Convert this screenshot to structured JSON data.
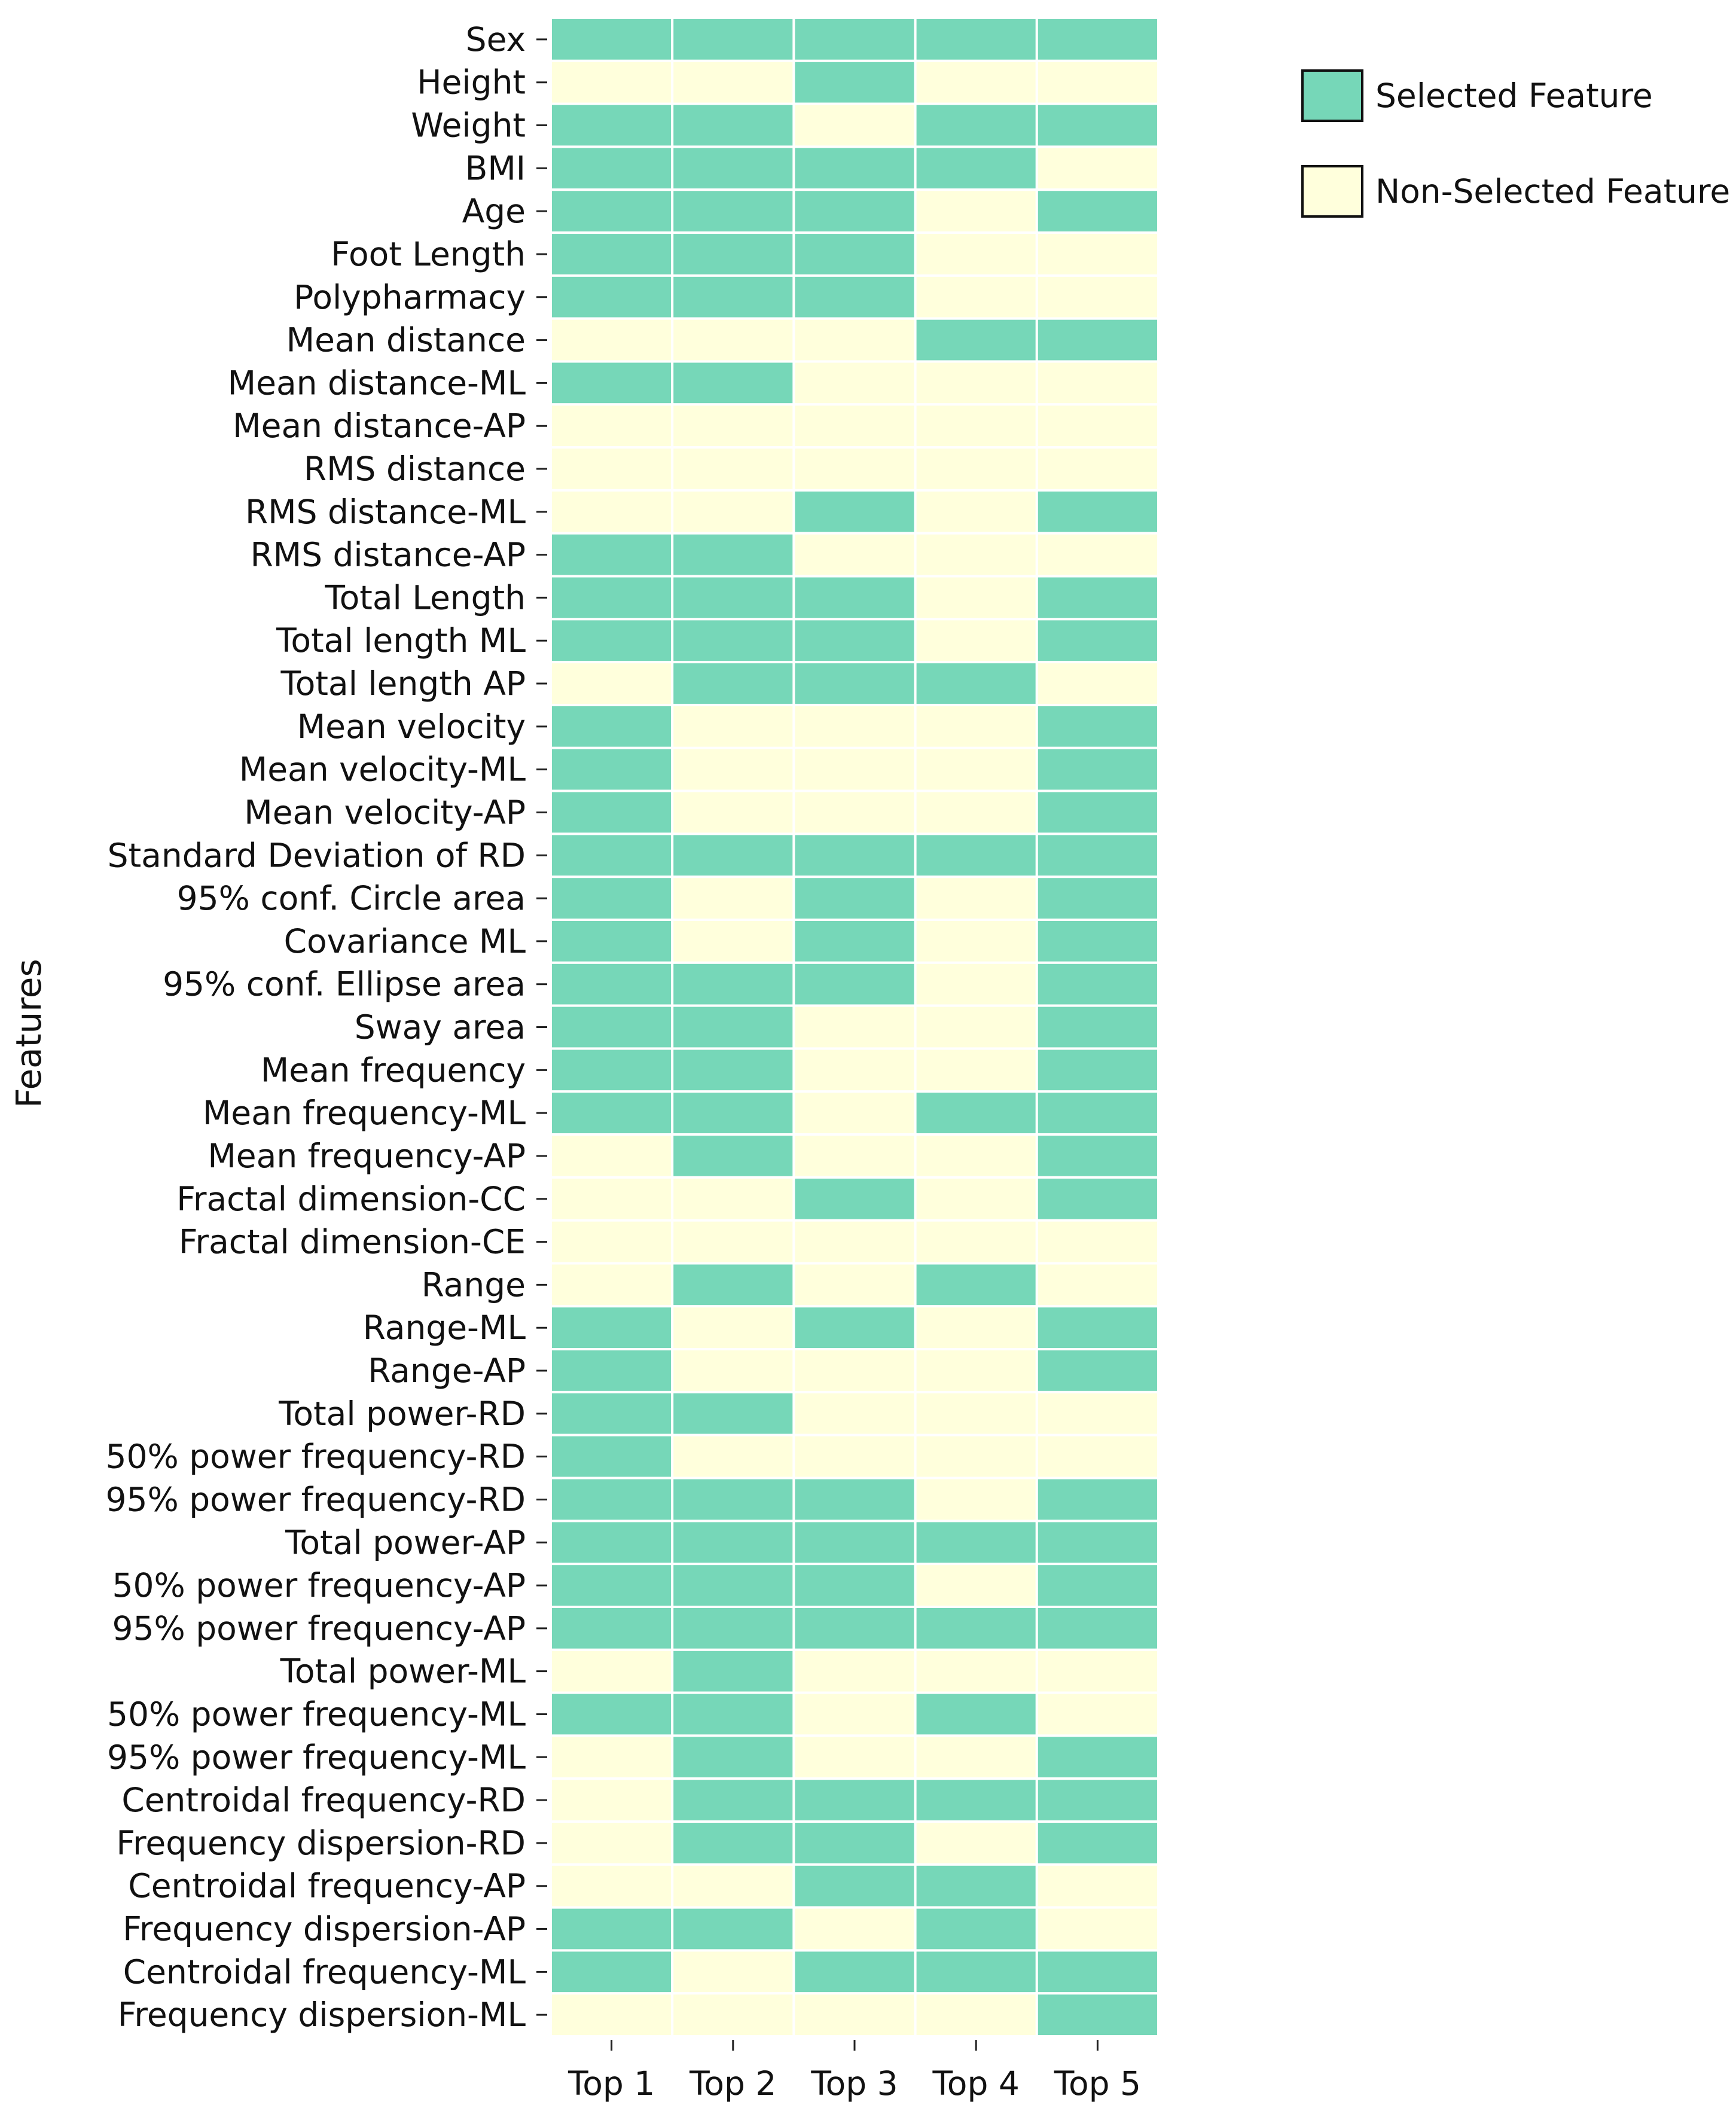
{
  "chart_data": {
    "type": "heatmap",
    "ylabel": "Features",
    "xlabel": "",
    "columns": [
      "Top 1",
      "Top 2",
      "Top 3",
      "Top 4",
      "Top 5"
    ],
    "rows": [
      "Sex",
      "Height",
      "Weight",
      "BMI",
      "Age",
      "Foot Length",
      "Polypharmacy",
      "Mean distance",
      "Mean distance-ML",
      "Mean distance-AP",
      "RMS distance",
      "RMS distance-ML",
      "RMS distance-AP",
      "Total Length",
      "Total length ML",
      "Total length AP",
      "Mean velocity",
      "Mean velocity-ML",
      "Mean velocity-AP",
      "Standard Deviation of RD",
      "95% conf. Circle area",
      "Covariance ML",
      "95% conf. Ellipse area",
      "Sway area",
      "Mean frequency",
      "Mean frequency-ML",
      "Mean frequency-AP",
      "Fractal dimension-CC",
      "Fractal dimension-CE",
      "Range",
      "Range-ML",
      "Range-AP",
      "Total power-RD",
      "50% power frequency-RD",
      "95% power frequency-RD",
      "Total power-AP",
      "50% power frequency-AP",
      "95% power frequency-AP",
      "Total power-ML",
      "50% power frequency-ML",
      "95% power frequency-ML",
      "Centroidal frequency-RD",
      "Frequency dispersion-RD",
      "Centroidal frequency-AP",
      "Frequency dispersion-AP",
      "Centroidal frequency-ML",
      "Frequency dispersion-ML"
    ],
    "values": [
      [
        1,
        1,
        1,
        1,
        1
      ],
      [
        0,
        0,
        1,
        0,
        0
      ],
      [
        1,
        1,
        0,
        1,
        1
      ],
      [
        1,
        1,
        1,
        1,
        0
      ],
      [
        1,
        1,
        1,
        0,
        1
      ],
      [
        1,
        1,
        1,
        0,
        0
      ],
      [
        1,
        1,
        1,
        0,
        0
      ],
      [
        0,
        0,
        0,
        1,
        1
      ],
      [
        1,
        1,
        0,
        0,
        0
      ],
      [
        0,
        0,
        0,
        0,
        0
      ],
      [
        0,
        0,
        0,
        0,
        0
      ],
      [
        0,
        0,
        1,
        0,
        1
      ],
      [
        1,
        1,
        0,
        0,
        0
      ],
      [
        1,
        1,
        1,
        0,
        1
      ],
      [
        1,
        1,
        1,
        0,
        1
      ],
      [
        0,
        1,
        1,
        1,
        0
      ],
      [
        1,
        0,
        0,
        0,
        1
      ],
      [
        1,
        0,
        0,
        0,
        1
      ],
      [
        1,
        0,
        0,
        0,
        1
      ],
      [
        1,
        1,
        1,
        1,
        1
      ],
      [
        1,
        0,
        1,
        0,
        1
      ],
      [
        1,
        0,
        1,
        0,
        1
      ],
      [
        1,
        1,
        1,
        0,
        1
      ],
      [
        1,
        1,
        0,
        0,
        1
      ],
      [
        1,
        1,
        0,
        0,
        1
      ],
      [
        1,
        1,
        0,
        1,
        1
      ],
      [
        0,
        1,
        0,
        0,
        1
      ],
      [
        0,
        0,
        1,
        0,
        1
      ],
      [
        0,
        0,
        0,
        0,
        0
      ],
      [
        0,
        1,
        0,
        1,
        0
      ],
      [
        1,
        0,
        1,
        0,
        1
      ],
      [
        1,
        0,
        0,
        0,
        1
      ],
      [
        1,
        1,
        0,
        0,
        0
      ],
      [
        1,
        0,
        0,
        0,
        0
      ],
      [
        1,
        1,
        1,
        0,
        1
      ],
      [
        1,
        1,
        1,
        1,
        1
      ],
      [
        1,
        1,
        1,
        0,
        1
      ],
      [
        1,
        1,
        1,
        1,
        1
      ],
      [
        0,
        1,
        0,
        0,
        0
      ],
      [
        1,
        1,
        0,
        1,
        0
      ],
      [
        0,
        1,
        0,
        0,
        1
      ],
      [
        0,
        1,
        1,
        1,
        1
      ],
      [
        0,
        1,
        1,
        0,
        1
      ],
      [
        0,
        0,
        1,
        1,
        0
      ],
      [
        1,
        1,
        0,
        1,
        0
      ],
      [
        1,
        0,
        1,
        1,
        1
      ],
      [
        0,
        0,
        0,
        0,
        1
      ]
    ],
    "legend": {
      "position": "top-right",
      "items": [
        {
          "label": "Selected Feature",
          "value": 1,
          "color": "#76d7b8"
        },
        {
          "label": "Non-Selected Feature",
          "value": 0,
          "color": "#ffffdc"
        }
      ]
    },
    "grid": false
  }
}
